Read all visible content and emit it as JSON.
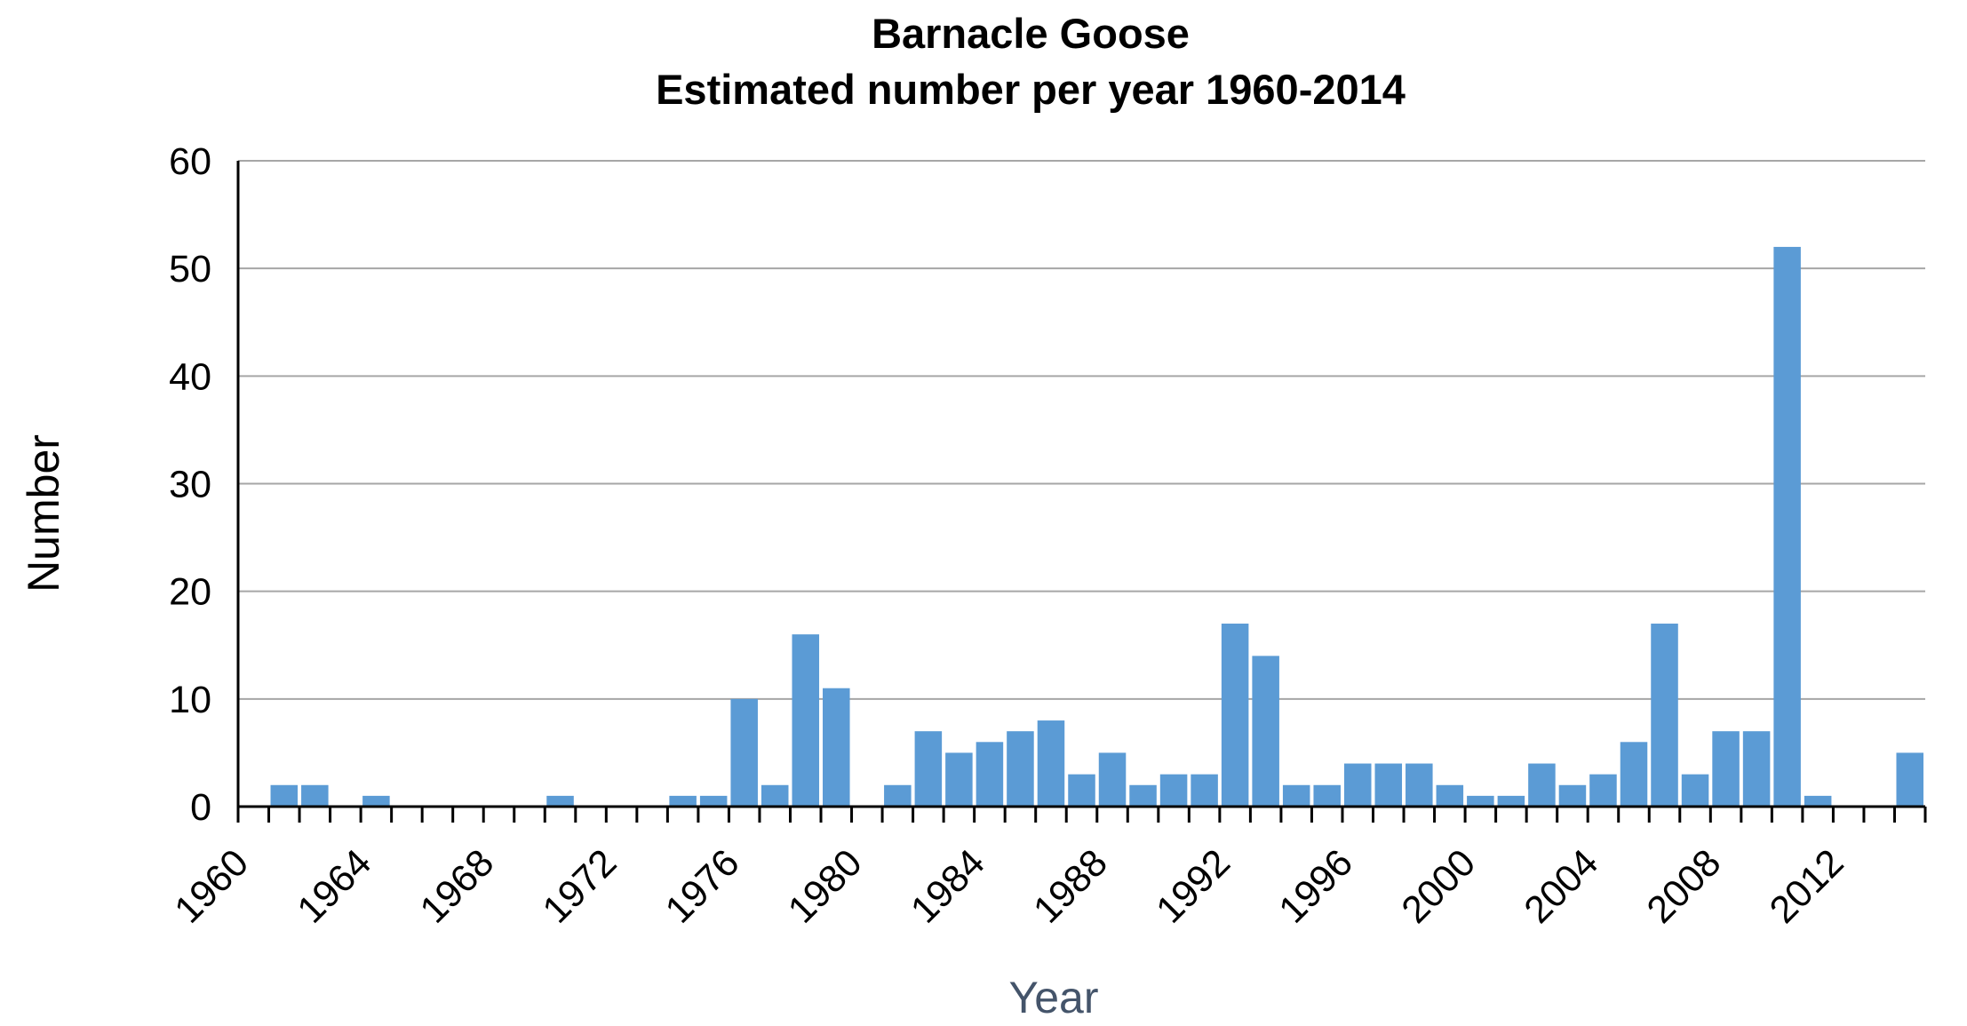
{
  "chart_data": {
    "type": "bar",
    "title": "Barnacle Goose",
    "subtitle": "Estimated number per year 1960-2014",
    "xlabel": "Year",
    "ylabel": "Number",
    "ylim": [
      0,
      60
    ],
    "yticks": [
      0,
      10,
      20,
      30,
      40,
      50,
      60
    ],
    "xlim": [
      1960,
      2015
    ],
    "xticks": [
      1960,
      1964,
      1968,
      1972,
      1976,
      1980,
      1984,
      1988,
      1992,
      1996,
      2000,
      2004,
      2008,
      2012
    ],
    "grid": true,
    "bar_color": "#5b9bd5",
    "xlabel_color": "#44546a",
    "x": [
      1961,
      1962,
      1964,
      1970,
      1974,
      1975,
      1976,
      1977,
      1978,
      1979,
      1981,
      1982,
      1983,
      1984,
      1985,
      1986,
      1987,
      1988,
      1989,
      1990,
      1991,
      1992,
      1993,
      1994,
      1995,
      1996,
      1997,
      1998,
      1999,
      2000,
      2001,
      2002,
      2003,
      2004,
      2005,
      2006,
      2007,
      2008,
      2009,
      2010,
      2011,
      2014
    ],
    "values": [
      2,
      2,
      1,
      1,
      1,
      1,
      10,
      2,
      16,
      11,
      2,
      7,
      5,
      6,
      7,
      8,
      3,
      5,
      2,
      3,
      3,
      17,
      14,
      2,
      2,
      4,
      4,
      4,
      2,
      1,
      1,
      4,
      2,
      3,
      6,
      17,
      3,
      7,
      7,
      52,
      1,
      5
    ]
  }
}
